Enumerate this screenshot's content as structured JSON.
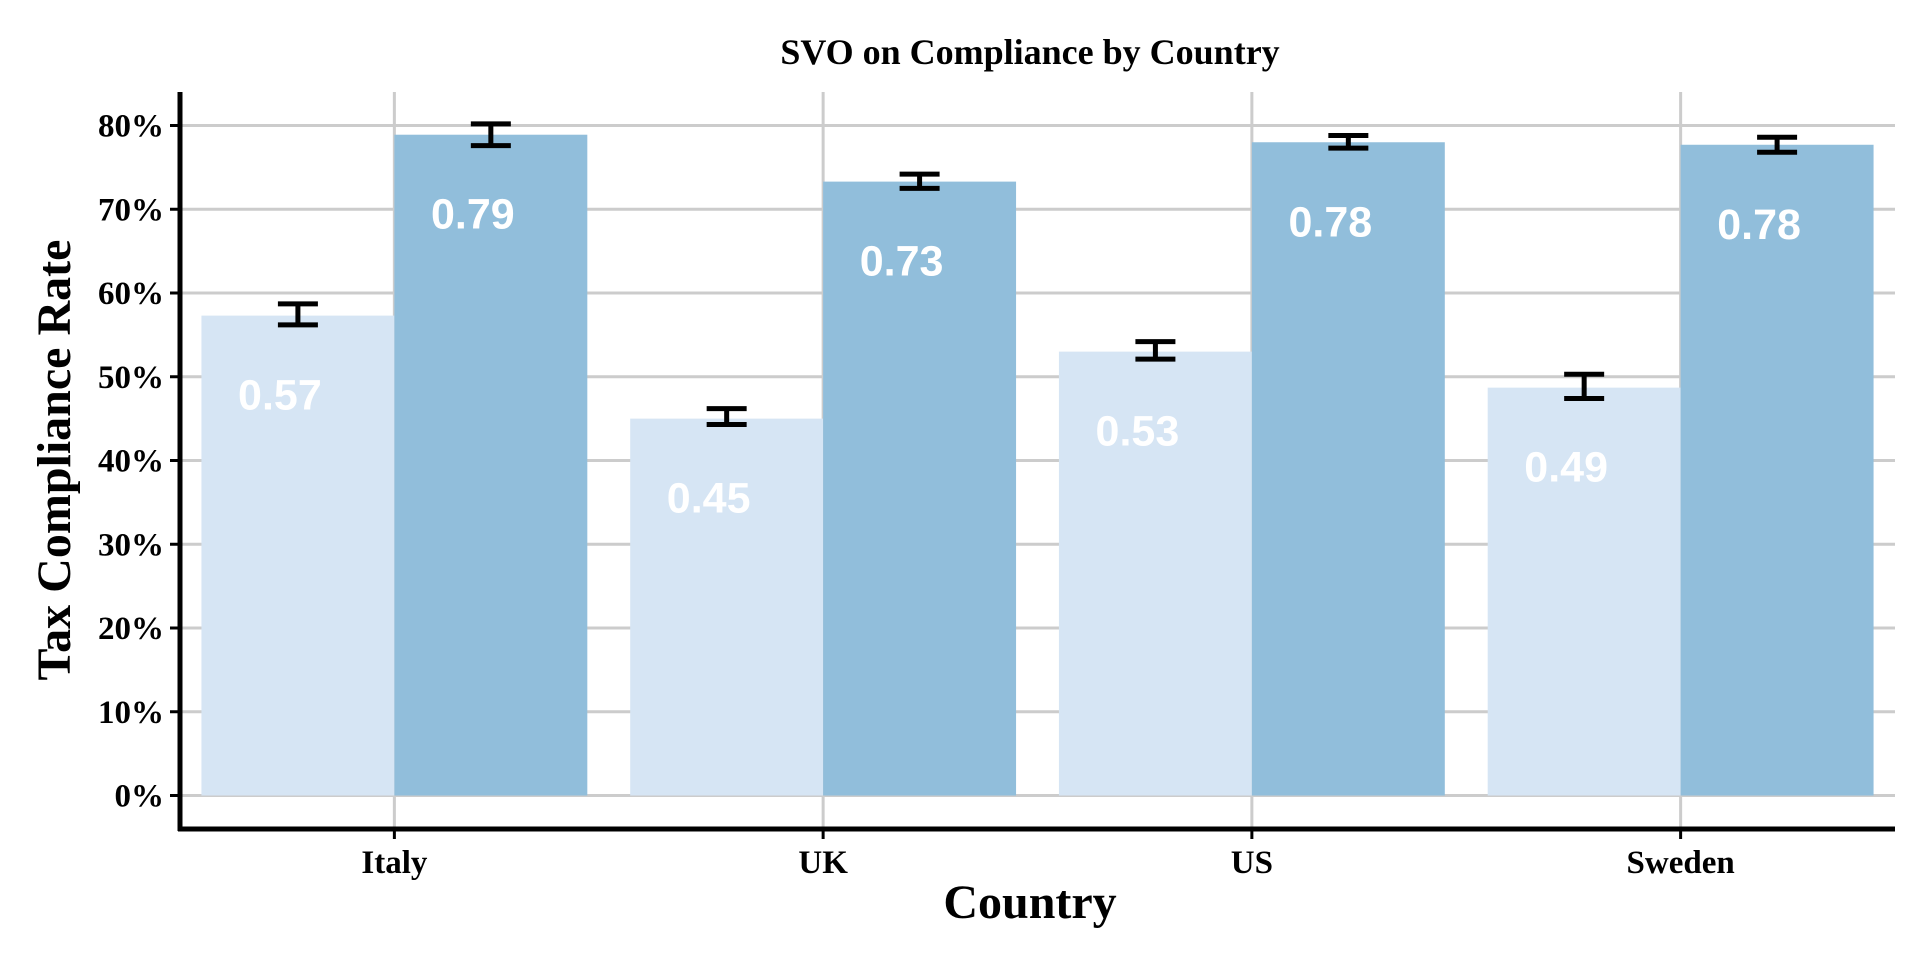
{
  "chart_data": {
    "type": "bar",
    "title": "SVO on Compliance by Country",
    "xlabel": "Country",
    "ylabel": "Tax Compliance Rate",
    "categories": [
      "Italy",
      "UK",
      "US",
      "Sweden"
    ],
    "series": [
      {
        "values": [
          0.573,
          0.45,
          0.53,
          0.487
        ],
        "error_low": [
          0.562,
          0.443,
          0.521,
          0.474
        ],
        "error_high": [
          0.587,
          0.462,
          0.542,
          0.503
        ],
        "labels": [
          "0.57",
          "0.45",
          "0.53",
          "0.49"
        ],
        "color": "#d6e5f4"
      },
      {
        "values": [
          0.789,
          0.733,
          0.78,
          0.777
        ],
        "error_low": [
          0.776,
          0.725,
          0.773,
          0.768
        ],
        "error_high": [
          0.802,
          0.742,
          0.788,
          0.786
        ],
        "labels": [
          "0.79",
          "0.73",
          "0.78",
          "0.78"
        ],
        "color": "#91bedb"
      }
    ],
    "ylim": [
      -0.04,
      0.84
    ],
    "yticks": [
      0,
      0.1,
      0.2,
      0.3,
      0.4,
      0.5,
      0.6,
      0.7,
      0.8
    ],
    "ytick_labels": [
      "0%",
      "10%",
      "20%",
      "30%",
      "40%",
      "50%",
      "60%",
      "70%",
      "80%"
    ],
    "grid": true,
    "legend": "none"
  }
}
